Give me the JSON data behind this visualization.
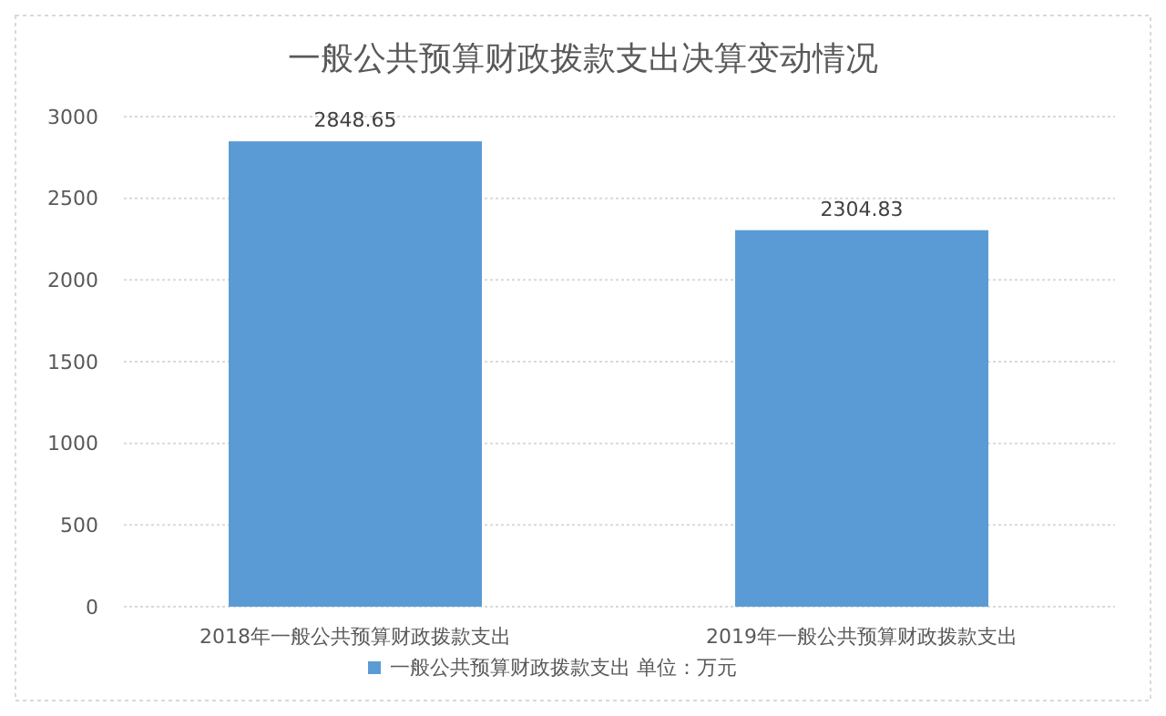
{
  "chart_data": {
    "type": "bar",
    "title": "一般公共预算财政拨款支出决算变动情况",
    "categories": [
      "2018年一般公共预算财政拨款支出",
      "2019年一般公共预算财政拨款支出"
    ],
    "series": [
      {
        "name": "一般公共预算财政拨款支出 单位：万元",
        "color": "#5b9bd5",
        "values": [
          2848.65,
          2304.83
        ]
      }
    ],
    "ylim": [
      0,
      3000
    ],
    "yticks": [
      0,
      500,
      1000,
      1500,
      2000,
      2500,
      3000
    ],
    "grid": "y",
    "legend": "bottom",
    "data_labels": true
  }
}
